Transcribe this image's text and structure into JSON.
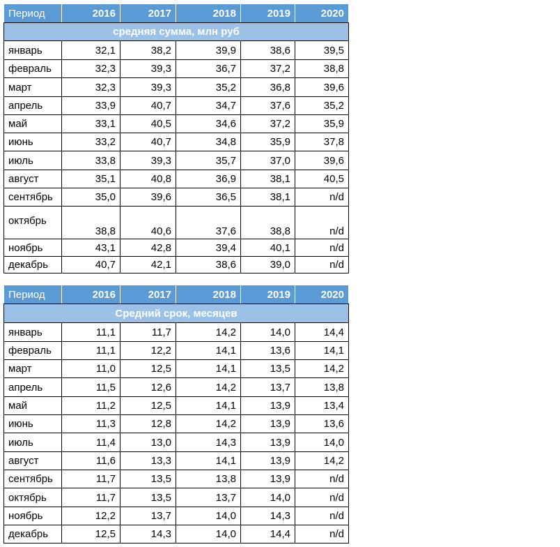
{
  "tables": [
    {
      "header": [
        "Период",
        "2016",
        "2017",
        "2018",
        "2019",
        "2020"
      ],
      "subtitle": "средняя сумма, млн руб",
      "rows": [
        [
          "январь",
          "32,1",
          "38,2",
          "39,9",
          "38,6",
          "39,5"
        ],
        [
          "февраль",
          "32,3",
          "39,3",
          "36,7",
          "37,2",
          "38,8"
        ],
        [
          "март",
          "32,3",
          "39,3",
          "35,2",
          "36,8",
          "39,6"
        ],
        [
          "апрель",
          "33,9",
          "40,7",
          "34,7",
          "37,6",
          "35,2"
        ],
        [
          "май",
          "33,1",
          "40,5",
          "34,6",
          "37,2",
          "35,9"
        ],
        [
          "июнь",
          "33,2",
          "40,7",
          "34,8",
          "35,9",
          "37,8"
        ],
        [
          "июль",
          "33,8",
          "39,3",
          "35,7",
          "37,0",
          "39,6"
        ],
        [
          "август",
          "35,1",
          "40,8",
          "36,9",
          "38,1",
          "40,5"
        ],
        [
          "сентябрь",
          "35,0",
          "39,6",
          "36,5",
          "38,1",
          "n/d"
        ],
        [
          "октябрь",
          "38,8",
          "40,6",
          "37,6",
          "38,8",
          "n/d"
        ],
        [
          "ноябрь",
          "43,1",
          "42,8",
          "39,4",
          "40,1",
          "n/d"
        ],
        [
          "декабрь",
          "40,7",
          "42,1",
          "38,6",
          "39,0",
          "n/d"
        ]
      ]
    },
    {
      "header": [
        "Период",
        "2016",
        "2017",
        "2018",
        "2019",
        "2020"
      ],
      "subtitle": "Средний срок, месяцев",
      "rows": [
        [
          "январь",
          "11,1",
          "11,7",
          "14,2",
          "14,0",
          "14,4"
        ],
        [
          "февраль",
          "11,1",
          "12,2",
          "14,1",
          "13,6",
          "14,1"
        ],
        [
          "март",
          "11,0",
          "12,5",
          "14,1",
          "13,5",
          "14,2"
        ],
        [
          "апрель",
          "11,5",
          "12,6",
          "14,2",
          "13,7",
          "13,8"
        ],
        [
          "май",
          "11,2",
          "12,5",
          "14,1",
          "13,9",
          "13,4"
        ],
        [
          "июнь",
          "11,3",
          "12,8",
          "14,2",
          "13,9",
          "13,6"
        ],
        [
          "июль",
          "11,4",
          "13,0",
          "14,3",
          "13,9",
          "14,0"
        ],
        [
          "август",
          "11,6",
          "13,3",
          "14,1",
          "13,9",
          "14,2"
        ],
        [
          "сентябрь",
          "11,7",
          "13,5",
          "13,8",
          "13,9",
          "n/d"
        ],
        [
          "октябрь",
          "11,7",
          "13,5",
          "13,7",
          "14,0",
          "n/d"
        ],
        [
          "ноябрь",
          "12,2",
          "13,7",
          "14,0",
          "14,3",
          "n/d"
        ],
        [
          "декабрь",
          "12,5",
          "14,3",
          "14,0",
          "14,4",
          "n/d"
        ]
      ]
    }
  ]
}
